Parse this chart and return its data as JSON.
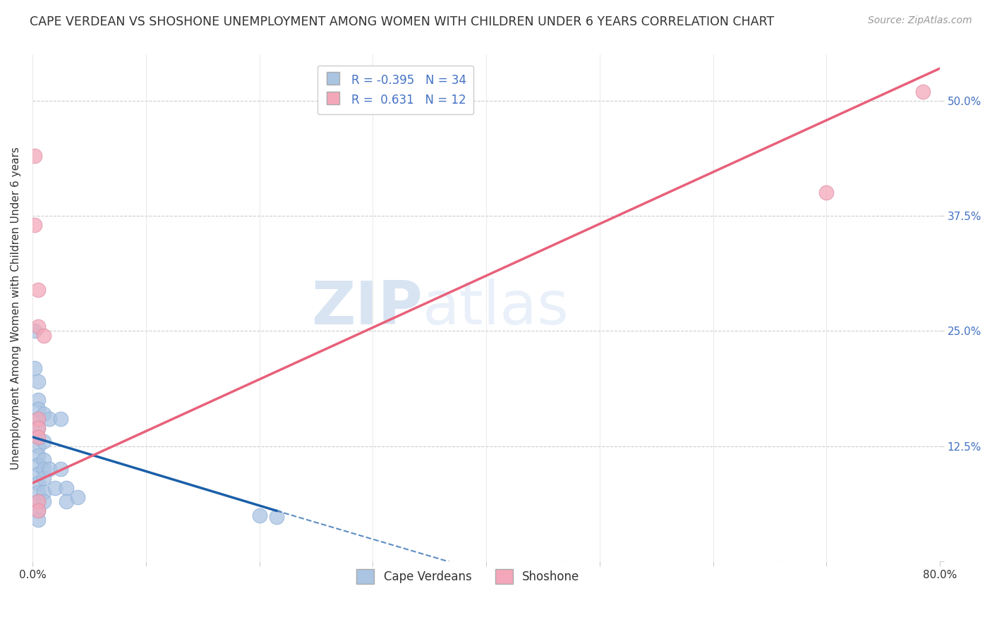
{
  "title": "CAPE VERDEAN VS SHOSHONE UNEMPLOYMENT AMONG WOMEN WITH CHILDREN UNDER 6 YEARS CORRELATION CHART",
  "source": "Source: ZipAtlas.com",
  "ylabel": "Unemployment Among Women with Children Under 6 years",
  "xlim": [
    0,
    0.8
  ],
  "ylim": [
    0,
    0.55
  ],
  "yticks": [
    0.0,
    0.125,
    0.25,
    0.375,
    0.5
  ],
  "ytick_labels": [
    "",
    "12.5%",
    "25.0%",
    "37.5%",
    "50.0%"
  ],
  "xticks": [
    0.0,
    0.1,
    0.2,
    0.3,
    0.4,
    0.5,
    0.6,
    0.7,
    0.8
  ],
  "xtick_labels": [
    "0.0%",
    "",
    "",
    "",
    "",
    "",
    "",
    "",
    "80.0%"
  ],
  "cape_verdean_color": "#aac4e2",
  "shoshone_color": "#f4a7b9",
  "cape_verdean_line_color": "#1a5fa8",
  "shoshone_line_color": "#e8607a",
  "r_cape": -0.395,
  "n_cape": 34,
  "r_shoshone": 0.631,
  "n_shoshone": 12,
  "watermark_zip": "ZIP",
  "watermark_atlas": "atlas",
  "cape_verdean_points": [
    [
      0.002,
      0.25
    ],
    [
      0.002,
      0.21
    ],
    [
      0.005,
      0.195
    ],
    [
      0.005,
      0.175
    ],
    [
      0.005,
      0.165
    ],
    [
      0.005,
      0.155
    ],
    [
      0.005,
      0.145
    ],
    [
      0.005,
      0.135
    ],
    [
      0.005,
      0.125
    ],
    [
      0.005,
      0.115
    ],
    [
      0.005,
      0.105
    ],
    [
      0.005,
      0.095
    ],
    [
      0.005,
      0.085
    ],
    [
      0.005,
      0.075
    ],
    [
      0.005,
      0.065
    ],
    [
      0.005,
      0.055
    ],
    [
      0.005,
      0.045
    ],
    [
      0.01,
      0.16
    ],
    [
      0.01,
      0.13
    ],
    [
      0.01,
      0.11
    ],
    [
      0.01,
      0.1
    ],
    [
      0.01,
      0.09
    ],
    [
      0.01,
      0.075
    ],
    [
      0.01,
      0.065
    ],
    [
      0.015,
      0.155
    ],
    [
      0.015,
      0.1
    ],
    [
      0.02,
      0.08
    ],
    [
      0.025,
      0.155
    ],
    [
      0.025,
      0.1
    ],
    [
      0.03,
      0.08
    ],
    [
      0.03,
      0.065
    ],
    [
      0.04,
      0.07
    ],
    [
      0.2,
      0.05
    ],
    [
      0.215,
      0.048
    ]
  ],
  "shoshone_points": [
    [
      0.002,
      0.44
    ],
    [
      0.002,
      0.365
    ],
    [
      0.005,
      0.295
    ],
    [
      0.005,
      0.255
    ],
    [
      0.005,
      0.155
    ],
    [
      0.005,
      0.145
    ],
    [
      0.005,
      0.135
    ],
    [
      0.005,
      0.065
    ],
    [
      0.005,
      0.055
    ],
    [
      0.01,
      0.245
    ],
    [
      0.7,
      0.4
    ],
    [
      0.785,
      0.51
    ]
  ],
  "cape_line_x0": 0.0,
  "cape_line_y0": 0.135,
  "cape_line_x1": 0.215,
  "cape_line_y1": 0.055,
  "cape_line_xdash1": 0.215,
  "cape_line_ydash1": 0.055,
  "cape_line_xdash2": 0.38,
  "cape_line_ydash2": -0.005,
  "shosh_line_x0": 0.0,
  "shosh_line_y0": 0.085,
  "shosh_line_x1": 0.8,
  "shosh_line_y1": 0.535,
  "grid_color": "#cccccc",
  "background_color": "#ffffff",
  "title_fontsize": 12.5,
  "axis_label_fontsize": 11,
  "tick_fontsize": 11,
  "legend_fontsize": 12
}
